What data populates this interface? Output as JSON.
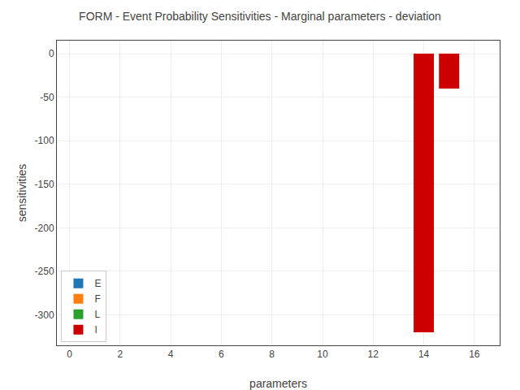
{
  "chart_data": {
    "type": "bar",
    "title": "FORM - Event Probability Sensitivities - Marginal parameters - deviation",
    "xlabel": "parameters",
    "ylabel": "sensitivities",
    "x": [
      14,
      15
    ],
    "series": [
      {
        "name": "E",
        "color": "#1f77b4",
        "values": [
          null,
          null
        ]
      },
      {
        "name": "F",
        "color": "#ff7f0e",
        "values": [
          null,
          null
        ]
      },
      {
        "name": "L",
        "color": "#2ca02c",
        "values": [
          null,
          null
        ]
      },
      {
        "name": "I",
        "color": "#cc0000",
        "values": [
          -320,
          -40
        ]
      }
    ],
    "xlim": [
      -0.5,
      17
    ],
    "xticks": [
      0,
      2,
      4,
      6,
      8,
      10,
      12,
      14,
      16
    ],
    "ylim": [
      -335,
      15
    ],
    "yticks": [
      0,
      -50,
      -100,
      -150,
      -200,
      -250,
      -300
    ],
    "grid": true,
    "legend": "lower left"
  }
}
